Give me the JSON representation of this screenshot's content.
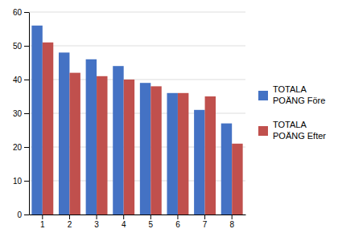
{
  "chart_data": {
    "type": "bar",
    "categories": [
      "1",
      "2",
      "3",
      "4",
      "5",
      "6",
      "7",
      "8"
    ],
    "series": [
      {
        "name": "TOTALA\nPOÄNG Före",
        "color": "#4472C4",
        "values": [
          56,
          48,
          46,
          44,
          39,
          36,
          31,
          27
        ]
      },
      {
        "name": "TOTALA\nPOÄNG Efter",
        "color": "#C0504D",
        "values": [
          51,
          42,
          41,
          40,
          38,
          36,
          35,
          21
        ]
      }
    ],
    "ylim": [
      0,
      60
    ],
    "yticks": [
      0,
      10,
      20,
      30,
      40,
      50,
      60
    ],
    "grid": true,
    "legend": "right"
  }
}
